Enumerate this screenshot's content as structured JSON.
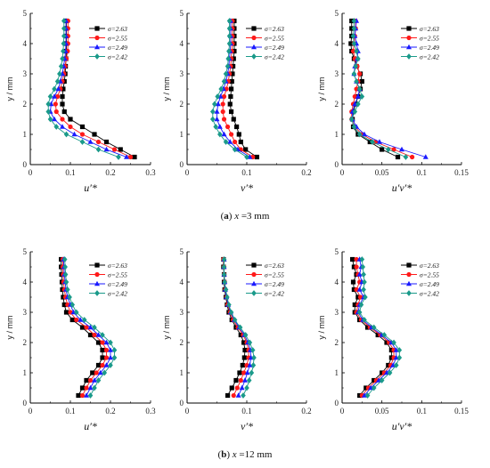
{
  "captions": {
    "a": {
      "label": "a",
      "var": "x",
      "text": " =3 mm"
    },
    "b": {
      "label": "b",
      "var": "x",
      "text": " =12 mm"
    }
  },
  "legend_labels": [
    "σ=2.63",
    "σ=2.55",
    "σ=2.49",
    "σ=2.42"
  ],
  "series_colors": [
    "#000000",
    "#ff1a1a",
    "#1a1aff",
    "#1a9a8a"
  ],
  "series_markers": [
    "square",
    "circle",
    "triangle",
    "diamond"
  ],
  "y_values": [
    0.25,
    0.5,
    0.75,
    1.0,
    1.25,
    1.5,
    1.75,
    2.0,
    2.25,
    2.5,
    2.75,
    3.0,
    3.25,
    3.5,
    3.75,
    4.0,
    4.25,
    4.5,
    4.75
  ],
  "chart_data": [
    {
      "type": "line",
      "id": "a-u",
      "xlabel": "u′*",
      "ylabel": "y / mm",
      "xlim": [
        0,
        0.3
      ],
      "ylim": [
        0,
        5
      ],
      "xticks": [
        "0",
        "0.1",
        "0.2",
        "0.3"
      ],
      "yticks": [
        "0",
        "1",
        "2",
        "3",
        "4",
        "5"
      ],
      "series": [
        {
          "name": "σ=2.63",
          "x": [
            0.26,
            0.225,
            0.19,
            0.16,
            0.13,
            0.1,
            0.085,
            0.08,
            0.08,
            0.082,
            0.085,
            0.087,
            0.088,
            0.089,
            0.09,
            0.09,
            0.09,
            0.09,
            0.09
          ]
        },
        {
          "name": "σ=2.55",
          "x": [
            0.25,
            0.21,
            0.17,
            0.13,
            0.1,
            0.08,
            0.065,
            0.063,
            0.068,
            0.075,
            0.08,
            0.084,
            0.087,
            0.09,
            0.093,
            0.094,
            0.094,
            0.094,
            0.094
          ]
        },
        {
          "name": "σ=2.49",
          "x": [
            0.24,
            0.19,
            0.15,
            0.11,
            0.08,
            0.06,
            0.05,
            0.052,
            0.06,
            0.07,
            0.075,
            0.08,
            0.083,
            0.086,
            0.088,
            0.089,
            0.089,
            0.089,
            0.089
          ]
        },
        {
          "name": "σ=2.42",
          "x": [
            0.22,
            0.17,
            0.13,
            0.09,
            0.065,
            0.05,
            0.045,
            0.045,
            0.05,
            0.06,
            0.068,
            0.073,
            0.077,
            0.08,
            0.082,
            0.083,
            0.084,
            0.084,
            0.084
          ]
        }
      ]
    },
    {
      "type": "line",
      "id": "a-v",
      "xlabel": "v′*",
      "ylabel": "y / mm",
      "xlim": [
        0,
        0.2
      ],
      "ylim": [
        0,
        5
      ],
      "xticks": [
        "0",
        "0.1",
        "0.2"
      ],
      "yticks": [
        "0",
        "1",
        "2",
        "3",
        "4",
        "5"
      ],
      "series": [
        {
          "name": "σ=2.63",
          "x": [
            0.117,
            0.098,
            0.09,
            0.087,
            0.083,
            0.078,
            0.074,
            0.072,
            0.073,
            0.074,
            0.075,
            0.076,
            0.077,
            0.078,
            0.079,
            0.079,
            0.079,
            0.079,
            0.079
          ]
        },
        {
          "name": "σ=2.55",
          "x": [
            0.11,
            0.09,
            0.08,
            0.074,
            0.068,
            0.062,
            0.06,
            0.06,
            0.062,
            0.066,
            0.069,
            0.071,
            0.073,
            0.074,
            0.075,
            0.076,
            0.076,
            0.076,
            0.076
          ]
        },
        {
          "name": "σ=2.49",
          "x": [
            0.105,
            0.085,
            0.072,
            0.062,
            0.055,
            0.05,
            0.05,
            0.052,
            0.056,
            0.061,
            0.065,
            0.068,
            0.07,
            0.071,
            0.072,
            0.073,
            0.073,
            0.073,
            0.073
          ]
        },
        {
          "name": "σ=2.42",
          "x": [
            0.1,
            0.08,
            0.065,
            0.055,
            0.048,
            0.043,
            0.043,
            0.046,
            0.051,
            0.057,
            0.062,
            0.065,
            0.068,
            0.069,
            0.07,
            0.071,
            0.071,
            0.071,
            0.071
          ]
        }
      ]
    },
    {
      "type": "line",
      "id": "a-uv",
      "xlabel": "u′v′*",
      "ylabel": "y / mm",
      "xlim": [
        0,
        0.15
      ],
      "ylim": [
        0,
        5
      ],
      "xticks": [
        "0",
        "0.05",
        "0.1",
        "0.15"
      ],
      "yticks": [
        "0",
        "1",
        "2",
        "3",
        "4",
        "5"
      ],
      "series": [
        {
          "name": "σ=2.63",
          "x": [
            0.07,
            0.05,
            0.035,
            0.02,
            0.014,
            0.013,
            0.014,
            0.017,
            0.02,
            0.023,
            0.025,
            0.023,
            0.018,
            0.015,
            0.012,
            0.011,
            0.012,
            0.012,
            0.012
          ]
        },
        {
          "name": "σ=2.55",
          "x": [
            0.088,
            0.065,
            0.042,
            0.025,
            0.016,
            0.012,
            0.012,
            0.014,
            0.016,
            0.018,
            0.02,
            0.022,
            0.019,
            0.016,
            0.014,
            0.015,
            0.016,
            0.017,
            0.017
          ]
        },
        {
          "name": "σ=2.49",
          "x": [
            0.105,
            0.075,
            0.047,
            0.028,
            0.018,
            0.013,
            0.013,
            0.016,
            0.02,
            0.022,
            0.018,
            0.015,
            0.016,
            0.019,
            0.02,
            0.018,
            0.016,
            0.017,
            0.018
          ]
        },
        {
          "name": "σ=2.42",
          "x": [
            0.08,
            0.058,
            0.038,
            0.022,
            0.015,
            0.012,
            0.016,
            0.02,
            0.025,
            0.022,
            0.018,
            0.015,
            0.017,
            0.02,
            0.018,
            0.015,
            0.014,
            0.015,
            0.015
          ]
        }
      ]
    },
    {
      "type": "line",
      "id": "b-u",
      "xlabel": "u′*",
      "ylabel": "y / mm",
      "xlim": [
        0,
        0.3
      ],
      "ylim": [
        0,
        5
      ],
      "xticks": [
        "0",
        "0.1",
        "0.2",
        "0.3"
      ],
      "yticks": [
        "0",
        "1",
        "2",
        "3",
        "4",
        "5"
      ],
      "series": [
        {
          "name": "σ=2.63",
          "x": [
            0.12,
            0.13,
            0.14,
            0.155,
            0.17,
            0.18,
            0.18,
            0.17,
            0.15,
            0.13,
            0.105,
            0.09,
            0.085,
            0.082,
            0.08,
            0.079,
            0.078,
            0.077,
            0.077
          ]
        },
        {
          "name": "σ=2.55",
          "x": [
            0.13,
            0.14,
            0.15,
            0.165,
            0.18,
            0.19,
            0.19,
            0.18,
            0.16,
            0.14,
            0.115,
            0.1,
            0.093,
            0.088,
            0.085,
            0.083,
            0.082,
            0.081,
            0.081
          ]
        },
        {
          "name": "σ=2.49",
          "x": [
            0.14,
            0.15,
            0.16,
            0.175,
            0.19,
            0.2,
            0.2,
            0.19,
            0.17,
            0.15,
            0.125,
            0.108,
            0.1,
            0.093,
            0.089,
            0.087,
            0.085,
            0.084,
            0.083
          ]
        },
        {
          "name": "σ=2.42",
          "x": [
            0.15,
            0.16,
            0.17,
            0.185,
            0.2,
            0.21,
            0.21,
            0.2,
            0.18,
            0.16,
            0.135,
            0.115,
            0.105,
            0.098,
            0.093,
            0.09,
            0.088,
            0.087,
            0.086
          ]
        }
      ]
    },
    {
      "type": "line",
      "id": "b-v",
      "xlabel": "v′*",
      "ylabel": "y / mm",
      "xlim": [
        0,
        0.2
      ],
      "ylim": [
        0,
        5
      ],
      "xticks": [
        "0",
        "0.1",
        "0.2"
      ],
      "yticks": [
        "0",
        "1",
        "2",
        "3",
        "4",
        "5"
      ],
      "series": [
        {
          "name": "σ=2.63",
          "x": [
            0.068,
            0.075,
            0.082,
            0.088,
            0.093,
            0.096,
            0.097,
            0.095,
            0.09,
            0.082,
            0.075,
            0.07,
            0.067,
            0.065,
            0.063,
            0.062,
            0.062,
            0.061,
            0.061
          ]
        },
        {
          "name": "σ=2.55",
          "x": [
            0.078,
            0.084,
            0.09,
            0.095,
            0.1,
            0.103,
            0.103,
            0.1,
            0.094,
            0.085,
            0.077,
            0.072,
            0.068,
            0.066,
            0.064,
            0.063,
            0.062,
            0.062,
            0.061
          ]
        },
        {
          "name": "σ=2.49",
          "x": [
            0.086,
            0.092,
            0.097,
            0.101,
            0.105,
            0.107,
            0.106,
            0.102,
            0.096,
            0.087,
            0.079,
            0.073,
            0.069,
            0.066,
            0.064,
            0.063,
            0.062,
            0.062,
            0.062
          ]
        },
        {
          "name": "σ=2.42",
          "x": [
            0.094,
            0.1,
            0.104,
            0.108,
            0.111,
            0.112,
            0.11,
            0.105,
            0.098,
            0.089,
            0.08,
            0.074,
            0.07,
            0.067,
            0.065,
            0.063,
            0.062,
            0.062,
            0.062
          ]
        }
      ]
    },
    {
      "type": "line",
      "id": "b-uv",
      "xlabel": "u′v′*",
      "ylabel": "y / mm",
      "xlim": [
        0,
        0.15
      ],
      "ylim": [
        0,
        5
      ],
      "xticks": [
        "0",
        "0.05",
        "0.1",
        "0.15"
      ],
      "yticks": [
        "0",
        "1",
        "2",
        "3",
        "4",
        "5"
      ],
      "series": [
        {
          "name": "σ=2.63",
          "x": [
            0.022,
            0.03,
            0.04,
            0.05,
            0.058,
            0.062,
            0.062,
            0.056,
            0.045,
            0.032,
            0.022,
            0.016,
            0.016,
            0.02,
            0.015,
            0.014,
            0.018,
            0.015,
            0.013
          ]
        },
        {
          "name": "σ=2.55",
          "x": [
            0.025,
            0.033,
            0.043,
            0.053,
            0.061,
            0.065,
            0.065,
            0.059,
            0.048,
            0.035,
            0.024,
            0.018,
            0.02,
            0.023,
            0.018,
            0.022,
            0.02,
            0.018,
            0.018
          ]
        },
        {
          "name": "σ=2.49",
          "x": [
            0.028,
            0.036,
            0.046,
            0.056,
            0.064,
            0.068,
            0.068,
            0.062,
            0.05,
            0.037,
            0.026,
            0.02,
            0.022,
            0.027,
            0.022,
            0.025,
            0.022,
            0.024,
            0.022
          ]
        },
        {
          "name": "σ=2.42",
          "x": [
            0.032,
            0.04,
            0.05,
            0.06,
            0.068,
            0.072,
            0.072,
            0.065,
            0.053,
            0.04,
            0.028,
            0.022,
            0.024,
            0.029,
            0.027,
            0.028,
            0.027,
            0.026,
            0.025
          ]
        }
      ]
    }
  ]
}
